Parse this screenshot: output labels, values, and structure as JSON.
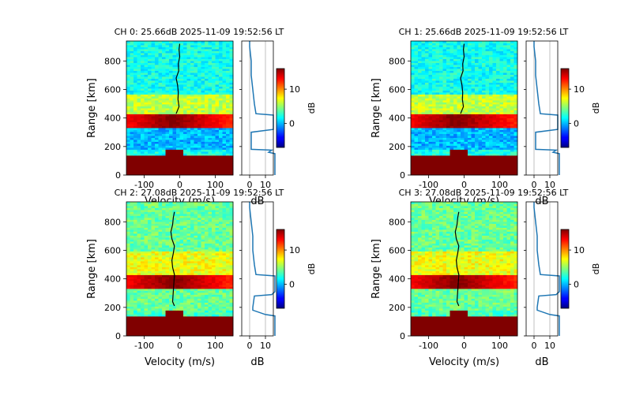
{
  "colors": {
    "colormap": "jet",
    "profile_line": "#1f77b4",
    "doppler_line": "#000000",
    "reference_line": "#b0b0b0",
    "saturated_band": "#800000"
  },
  "chart_data": [
    {
      "type": "heatmap",
      "title": "CH 0: 25.66dB 2025-11-09 19:52:56 LT",
      "xlabel": "Velocity (m/s)",
      "ylabel": "Range [km]",
      "xlim": [
        -150,
        150
      ],
      "ylim": [
        0,
        940
      ],
      "xticks": [
        -100,
        0,
        100
      ],
      "yticks": [
        0,
        200,
        400,
        600,
        800
      ],
      "colorbar": {
        "label": "dB",
        "range": [
          -7,
          16
        ],
        "ticks": [
          0,
          10
        ]
      },
      "spectrum_levels_db": [
        {
          "range_km": [
            0,
            140
          ],
          "level": 16,
          "note": "saturated"
        },
        {
          "range_km": [
            140,
            180
          ],
          "level": 2,
          "note": "echo near -30 to 10 m/s"
        },
        {
          "range_km": [
            180,
            330
          ],
          "level": 0
        },
        {
          "range_km": [
            330,
            430
          ],
          "level": 16,
          "note": "saturated band"
        },
        {
          "range_km": [
            430,
            560
          ],
          "level": 6
        },
        {
          "range_km": [
            560,
            940
          ],
          "level": 2
        }
      ],
      "doppler_trace": {
        "range_km": [
          430,
          480,
          530,
          580,
          630,
          680,
          730,
          780,
          830,
          880,
          920
        ],
        "velocity": [
          -10,
          -2,
          -5,
          -4,
          -6,
          -10,
          -3,
          -4,
          0,
          -2,
          0
        ]
      },
      "profile_panel": {
        "xlabel": "dB",
        "xlim": [
          -5,
          15
        ],
        "xticks": [
          0,
          10
        ],
        "reference_lines_db": [
          0,
          10
        ],
        "range_km": [
          0,
          150,
          160,
          175,
          180,
          300,
          320,
          330,
          400,
          420,
          430,
          500,
          600,
          700,
          800,
          900,
          940
        ],
        "power_db": [
          16,
          16,
          12,
          14,
          1,
          1,
          15,
          15,
          15,
          15,
          4,
          3,
          2,
          1,
          1,
          0,
          0
        ]
      }
    },
    {
      "type": "heatmap",
      "title": "CH 1: 25.66dB 2025-11-09 19:52:56 LT",
      "xlabel": "Velocity (m/s)",
      "ylabel": "Range [km]",
      "xlim": [
        -150,
        150
      ],
      "ylim": [
        0,
        940
      ],
      "xticks": [
        -100,
        0,
        100
      ],
      "yticks": [
        0,
        200,
        400,
        600,
        800
      ],
      "colorbar": {
        "label": "dB",
        "range": [
          -7,
          16
        ],
        "ticks": [
          0,
          10
        ]
      },
      "spectrum_levels_db": [
        {
          "range_km": [
            0,
            140
          ],
          "level": 16,
          "note": "saturated"
        },
        {
          "range_km": [
            140,
            180
          ],
          "level": 2,
          "note": "echo near -30 to 10 m/s"
        },
        {
          "range_km": [
            180,
            330
          ],
          "level": 0
        },
        {
          "range_km": [
            330,
            430
          ],
          "level": 16,
          "note": "saturated band"
        },
        {
          "range_km": [
            430,
            560
          ],
          "level": 6
        },
        {
          "range_km": [
            560,
            940
          ],
          "level": 2
        }
      ],
      "doppler_trace": {
        "range_km": [
          430,
          480,
          530,
          580,
          630,
          680,
          730,
          780,
          830,
          880,
          920
        ],
        "velocity": [
          -10,
          -2,
          -5,
          -4,
          -6,
          -10,
          -3,
          -4,
          0,
          -2,
          0
        ]
      },
      "profile_panel": {
        "xlabel": "dB",
        "xlim": [
          -5,
          15
        ],
        "xticks": [
          0,
          10
        ],
        "reference_lines_db": [
          0,
          10
        ],
        "range_km": [
          0,
          150,
          160,
          175,
          180,
          300,
          320,
          330,
          400,
          420,
          430,
          500,
          600,
          700,
          800,
          900,
          940
        ],
        "power_db": [
          16,
          16,
          12,
          14,
          1,
          1,
          15,
          15,
          15,
          15,
          4,
          3,
          2,
          1,
          1,
          0,
          0
        ]
      }
    },
    {
      "type": "heatmap",
      "title": "CH 2: 27.08dB 2025-11-09 19:52:56 LT",
      "xlabel": "Velocity (m/s)",
      "ylabel": "Range [km]",
      "xlim": [
        -150,
        150
      ],
      "ylim": [
        0,
        940
      ],
      "xticks": [
        -100,
        0,
        100
      ],
      "yticks": [
        0,
        200,
        400,
        600,
        800
      ],
      "colorbar": {
        "label": "dB",
        "range": [
          -7,
          16
        ],
        "ticks": [
          0,
          10
        ]
      },
      "spectrum_levels_db": [
        {
          "range_km": [
            0,
            140
          ],
          "level": 16,
          "note": "saturated"
        },
        {
          "range_km": [
            140,
            180
          ],
          "level": 3,
          "note": "echo near -30 to 10 m/s"
        },
        {
          "range_km": [
            180,
            330
          ],
          "level": 4
        },
        {
          "range_km": [
            330,
            430
          ],
          "level": 16,
          "note": "saturated band"
        },
        {
          "range_km": [
            430,
            600
          ],
          "level": 7
        },
        {
          "range_km": [
            600,
            940
          ],
          "level": 4
        }
      ],
      "doppler_trace": {
        "range_km": [
          210,
          240,
          430,
          480,
          530,
          580,
          630,
          680,
          730,
          780,
          830,
          870
        ],
        "velocity": [
          -15,
          -20,
          -15,
          -20,
          -22,
          -18,
          -15,
          -22,
          -25,
          -20,
          -18,
          -15
        ]
      },
      "profile_panel": {
        "xlabel": "dB",
        "xlim": [
          -5,
          15
        ],
        "xticks": [
          0,
          10
        ],
        "reference_lines_db": [
          0,
          10
        ],
        "range_km": [
          0,
          140,
          150,
          180,
          200,
          280,
          290,
          310,
          330,
          400,
          420,
          430,
          500,
          600,
          700,
          800,
          900,
          940
        ],
        "power_db": [
          16,
          16,
          10,
          2,
          2,
          3,
          14,
          16,
          16,
          16,
          16,
          4,
          3,
          2,
          2,
          1,
          0,
          0
        ]
      }
    },
    {
      "type": "heatmap",
      "title": "CH 3: 27.08dB 2025-11-09 19:52:56 LT",
      "xlabel": "Velocity (m/s)",
      "ylabel": "Range [km]",
      "xlim": [
        -150,
        150
      ],
      "ylim": [
        0,
        940
      ],
      "xticks": [
        -100,
        0,
        100
      ],
      "yticks": [
        0,
        200,
        400,
        600,
        800
      ],
      "colorbar": {
        "label": "dB",
        "range": [
          -7,
          16
        ],
        "ticks": [
          0,
          10
        ]
      },
      "spectrum_levels_db": [
        {
          "range_km": [
            0,
            140
          ],
          "level": 16,
          "note": "saturated"
        },
        {
          "range_km": [
            140,
            180
          ],
          "level": 3,
          "note": "echo near -30 to 10 m/s"
        },
        {
          "range_km": [
            180,
            330
          ],
          "level": 4
        },
        {
          "range_km": [
            330,
            430
          ],
          "level": 16,
          "note": "saturated band"
        },
        {
          "range_km": [
            430,
            600
          ],
          "level": 7
        },
        {
          "range_km": [
            600,
            940
          ],
          "level": 4
        }
      ],
      "doppler_trace": {
        "range_km": [
          210,
          240,
          430,
          480,
          530,
          580,
          630,
          680,
          730,
          780,
          830,
          870
        ],
        "velocity": [
          -15,
          -20,
          -15,
          -20,
          -22,
          -18,
          -15,
          -22,
          -25,
          -20,
          -18,
          -15
        ]
      },
      "profile_panel": {
        "xlabel": "dB",
        "xlim": [
          -5,
          15
        ],
        "xticks": [
          0,
          10
        ],
        "reference_lines_db": [
          0,
          10
        ],
        "range_km": [
          0,
          140,
          150,
          180,
          200,
          280,
          290,
          310,
          330,
          400,
          420,
          430,
          500,
          600,
          700,
          800,
          900,
          940
        ],
        "power_db": [
          16,
          16,
          10,
          2,
          2,
          3,
          14,
          16,
          16,
          16,
          16,
          4,
          3,
          2,
          2,
          1,
          0,
          0
        ]
      }
    }
  ]
}
